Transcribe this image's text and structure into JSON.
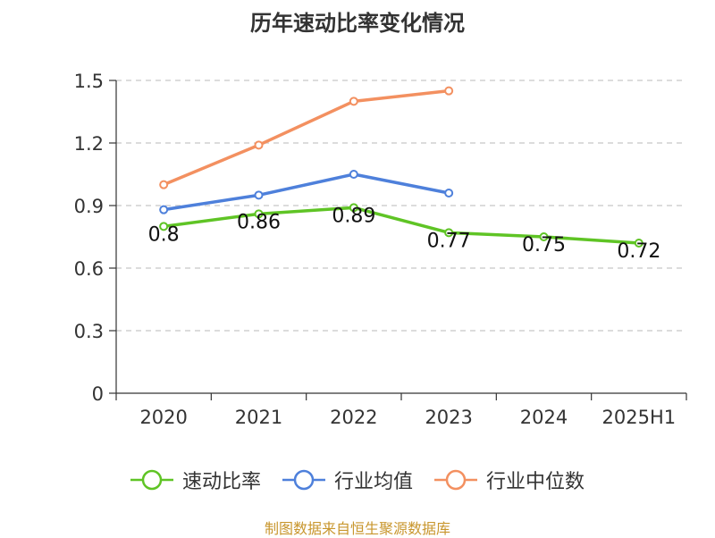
{
  "chart_data": {
    "type": "line",
    "title": "历年速动比率变化情况",
    "categories": [
      "2020",
      "2021",
      "2022",
      "2023",
      "2024",
      "2025H1"
    ],
    "yticks": [
      "0",
      "0.3",
      "0.6",
      "0.9",
      "1.2",
      "1.5"
    ],
    "ylim": [
      0,
      1.5
    ],
    "grid": true,
    "legend_position": "bottom",
    "series": [
      {
        "name": "速动比率",
        "color": "#5fc425",
        "values": [
          0.8,
          0.86,
          0.89,
          0.77,
          0.75,
          0.72
        ],
        "labels": [
          "0.8",
          "0.86",
          "0.89",
          "0.77",
          "0.75",
          "0.72"
        ]
      },
      {
        "name": "行业均值",
        "color": "#4e80db",
        "values": [
          0.88,
          0.95,
          1.05,
          0.96,
          null,
          null
        ]
      },
      {
        "name": "行业中位数",
        "color": "#f39060",
        "values": [
          1.0,
          1.19,
          1.4,
          1.45,
          null,
          null
        ]
      }
    ],
    "source": "制图数据来自恒生聚源数据库"
  }
}
